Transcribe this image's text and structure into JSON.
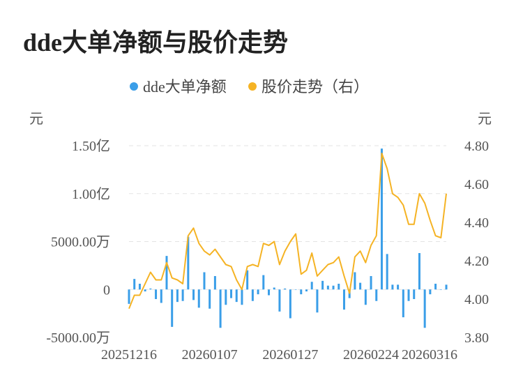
{
  "title": "dde大单净额与股价走势",
  "chart_data": {
    "type": "bar+line",
    "legend": {
      "position": "top",
      "items": [
        "dde大单净额",
        "股价走势（右）"
      ]
    },
    "left_axis": {
      "unit": "元",
      "ticks": [
        "1.50亿",
        "1.00亿",
        "5000.00万",
        "0",
        "-5000.00万"
      ],
      "range": [
        -50000000,
        150000000
      ]
    },
    "right_axis": {
      "unit": "元",
      "ticks": [
        "4.80",
        "4.60",
        "4.40",
        "4.20",
        "4.00",
        "3.80"
      ],
      "range": [
        3.8,
        4.8
      ]
    },
    "x_tick_labels": [
      "20251216",
      "20260107",
      "20260127",
      "20260224",
      "20260316"
    ],
    "colors": {
      "bars": "#3a9ee8",
      "line": "#f5b324"
    },
    "series": [
      {
        "name": "dde大单净额",
        "type": "bar",
        "axis": "left",
        "values": [
          -15000000,
          11000000,
          6000000,
          -2000000,
          1000000,
          -10000000,
          -14000000,
          35000000,
          -39000000,
          -13000000,
          -12000000,
          55000000,
          -11000000,
          -19000000,
          18000000,
          -20000000,
          14000000,
          -40000000,
          -16000000,
          -9000000,
          -13000000,
          -16000000,
          20000000,
          -12000000,
          -5000000,
          15000000,
          -6000000,
          2000000,
          -23000000,
          1000000,
          -30000000,
          0,
          -5000000,
          -2000000,
          8000000,
          -24000000,
          9000000,
          4000000,
          4000000,
          6000000,
          -21000000,
          -9000000,
          18000000,
          7000000,
          -16000000,
          14000000,
          -12000000,
          147000000,
          37000000,
          5000000,
          5000000,
          -29000000,
          -12000000,
          -10000000,
          38000000,
          -40000000,
          -5000000,
          6000000,
          0,
          5000000
        ]
      },
      {
        "name": "股价走势（右）",
        "type": "line",
        "axis": "right",
        "values": [
          3.95,
          4.02,
          4.02,
          4.08,
          4.14,
          4.1,
          4.1,
          4.19,
          4.11,
          4.1,
          4.08,
          4.33,
          4.37,
          4.29,
          4.25,
          4.23,
          4.26,
          4.22,
          4.18,
          4.17,
          4.1,
          4.05,
          4.17,
          4.18,
          4.17,
          4.29,
          4.28,
          4.3,
          4.18,
          4.25,
          4.3,
          4.34,
          4.13,
          4.15,
          4.24,
          4.12,
          4.15,
          4.18,
          4.19,
          4.22,
          4.12,
          4.03,
          4.22,
          4.25,
          4.19,
          4.28,
          4.33,
          4.76,
          4.68,
          4.55,
          4.53,
          4.49,
          4.39,
          4.39,
          4.55,
          4.5,
          4.41,
          4.33,
          4.32,
          4.55
        ]
      }
    ]
  }
}
